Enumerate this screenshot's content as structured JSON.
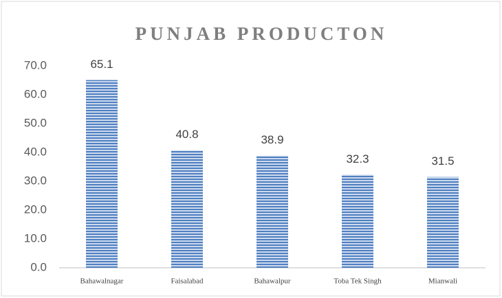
{
  "chart_data": {
    "type": "bar",
    "title": "PUNJAB PRODUCTON",
    "categories": [
      "Bahawalnagar",
      "Faisalabad",
      "Bahawalpur",
      "Toba Tek Singh",
      "Mianwali"
    ],
    "values": [
      65.1,
      40.8,
      38.9,
      32.3,
      31.5
    ],
    "color": "#4f7fc0",
    "ylim": [
      0,
      70
    ],
    "yticks": [
      {
        "value": 0,
        "label": "0.0"
      },
      {
        "value": 10,
        "label": "10.0"
      },
      {
        "value": 20,
        "label": "20.0"
      },
      {
        "value": 30,
        "label": "30.0"
      },
      {
        "value": 40,
        "label": "40.0"
      },
      {
        "value": 50,
        "label": "50.0"
      },
      {
        "value": 60,
        "label": "60.0"
      },
      {
        "value": 70,
        "label": "70.0"
      }
    ],
    "grid": false
  }
}
